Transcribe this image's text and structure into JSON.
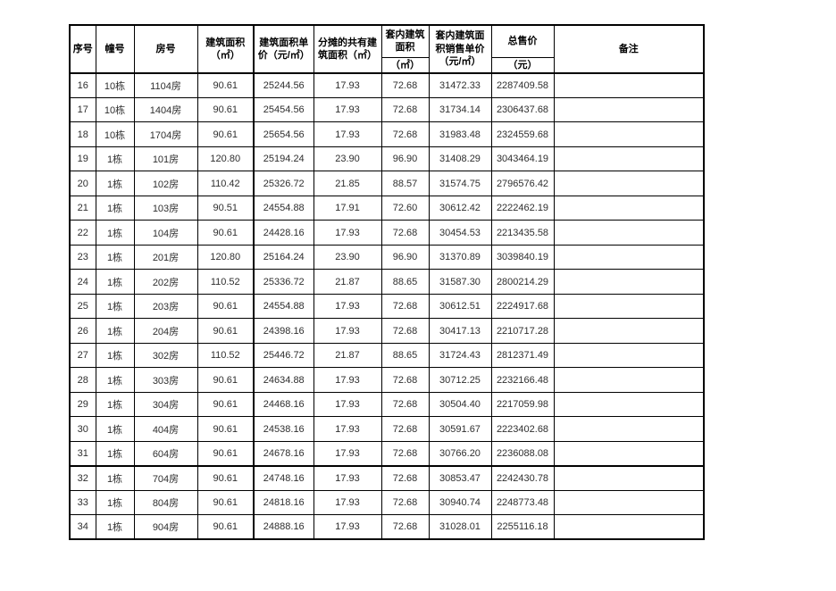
{
  "page": {
    "background_color": "#ffffff",
    "border_color": "#000000",
    "text_color": "#2e2e2e"
  },
  "table": {
    "header": {
      "seq": "序号",
      "building": "幢号",
      "room": "房号",
      "area": "建筑面积（㎡）",
      "area_unit_price": "建筑面积单价（元/㎡）",
      "shared_area": "分摊的共有建筑面积（㎡）",
      "inner_area": "套内建筑面积",
      "inner_area_unit": "（㎡）",
      "inner_unit_price": "套内建筑面积销售单价（元/㎡）",
      "total": "总售价",
      "total_unit": "（元）",
      "remark": "备注"
    },
    "rows": [
      {
        "seq": "16",
        "building": "10栋",
        "room": "1104房",
        "area": "90.61",
        "area_unit_price": "25244.56",
        "shared_area": "17.93",
        "inner_area": "72.68",
        "inner_unit_price": "31472.33",
        "total": "2287409.58",
        "remark": ""
      },
      {
        "seq": "17",
        "building": "10栋",
        "room": "1404房",
        "area": "90.61",
        "area_unit_price": "25454.56",
        "shared_area": "17.93",
        "inner_area": "72.68",
        "inner_unit_price": "31734.14",
        "total": "2306437.68",
        "remark": ""
      },
      {
        "seq": "18",
        "building": "10栋",
        "room": "1704房",
        "area": "90.61",
        "area_unit_price": "25654.56",
        "shared_area": "17.93",
        "inner_area": "72.68",
        "inner_unit_price": "31983.48",
        "total": "2324559.68",
        "remark": ""
      },
      {
        "seq": "19",
        "building": "1栋",
        "room": "101房",
        "area": "120.80",
        "area_unit_price": "25194.24",
        "shared_area": "23.90",
        "inner_area": "96.90",
        "inner_unit_price": "31408.29",
        "total": "3043464.19",
        "remark": ""
      },
      {
        "seq": "20",
        "building": "1栋",
        "room": "102房",
        "area": "110.42",
        "area_unit_price": "25326.72",
        "shared_area": "21.85",
        "inner_area": "88.57",
        "inner_unit_price": "31574.75",
        "total": "2796576.42",
        "remark": ""
      },
      {
        "seq": "21",
        "building": "1栋",
        "room": "103房",
        "area": "90.51",
        "area_unit_price": "24554.88",
        "shared_area": "17.91",
        "inner_area": "72.60",
        "inner_unit_price": "30612.42",
        "total": "2222462.19",
        "remark": ""
      },
      {
        "seq": "22",
        "building": "1栋",
        "room": "104房",
        "area": "90.61",
        "area_unit_price": "24428.16",
        "shared_area": "17.93",
        "inner_area": "72.68",
        "inner_unit_price": "30454.53",
        "total": "2213435.58",
        "remark": ""
      },
      {
        "seq": "23",
        "building": "1栋",
        "room": "201房",
        "area": "120.80",
        "area_unit_price": "25164.24",
        "shared_area": "23.90",
        "inner_area": "96.90",
        "inner_unit_price": "31370.89",
        "total": "3039840.19",
        "remark": ""
      },
      {
        "seq": "24",
        "building": "1栋",
        "room": "202房",
        "area": "110.52",
        "area_unit_price": "25336.72",
        "shared_area": "21.87",
        "inner_area": "88.65",
        "inner_unit_price": "31587.30",
        "total": "2800214.29",
        "remark": ""
      },
      {
        "seq": "25",
        "building": "1栋",
        "room": "203房",
        "area": "90.61",
        "area_unit_price": "24554.88",
        "shared_area": "17.93",
        "inner_area": "72.68",
        "inner_unit_price": "30612.51",
        "total": "2224917.68",
        "remark": ""
      },
      {
        "seq": "26",
        "building": "1栋",
        "room": "204房",
        "area": "90.61",
        "area_unit_price": "24398.16",
        "shared_area": "17.93",
        "inner_area": "72.68",
        "inner_unit_price": "30417.13",
        "total": "2210717.28",
        "remark": ""
      },
      {
        "seq": "27",
        "building": "1栋",
        "room": "302房",
        "area": "110.52",
        "area_unit_price": "25446.72",
        "shared_area": "21.87",
        "inner_area": "88.65",
        "inner_unit_price": "31724.43",
        "total": "2812371.49",
        "remark": ""
      },
      {
        "seq": "28",
        "building": "1栋",
        "room": "303房",
        "area": "90.61",
        "area_unit_price": "24634.88",
        "shared_area": "17.93",
        "inner_area": "72.68",
        "inner_unit_price": "30712.25",
        "total": "2232166.48",
        "remark": ""
      },
      {
        "seq": "29",
        "building": "1栋",
        "room": "304房",
        "area": "90.61",
        "area_unit_price": "24468.16",
        "shared_area": "17.93",
        "inner_area": "72.68",
        "inner_unit_price": "30504.40",
        "total": "2217059.98",
        "remark": ""
      },
      {
        "seq": "30",
        "building": "1栋",
        "room": "404房",
        "area": "90.61",
        "area_unit_price": "24538.16",
        "shared_area": "17.93",
        "inner_area": "72.68",
        "inner_unit_price": "30591.67",
        "total": "2223402.68",
        "remark": ""
      },
      {
        "seq": "31",
        "building": "1栋",
        "room": "604房",
        "area": "90.61",
        "area_unit_price": "24678.16",
        "shared_area": "17.93",
        "inner_area": "72.68",
        "inner_unit_price": "30766.20",
        "total": "2236088.08",
        "remark": "",
        "section_end": true
      },
      {
        "seq": "32",
        "building": "1栋",
        "room": "704房",
        "area": "90.61",
        "area_unit_price": "24748.16",
        "shared_area": "17.93",
        "inner_area": "72.68",
        "inner_unit_price": "30853.47",
        "total": "2242430.78",
        "remark": ""
      },
      {
        "seq": "33",
        "building": "1栋",
        "room": "804房",
        "area": "90.61",
        "area_unit_price": "24818.16",
        "shared_area": "17.93",
        "inner_area": "72.68",
        "inner_unit_price": "30940.74",
        "total": "2248773.48",
        "remark": ""
      },
      {
        "seq": "34",
        "building": "1栋",
        "room": "904房",
        "area": "90.61",
        "area_unit_price": "24888.16",
        "shared_area": "17.93",
        "inner_area": "72.68",
        "inner_unit_price": "31028.01",
        "total": "2255116.18",
        "remark": ""
      }
    ]
  }
}
